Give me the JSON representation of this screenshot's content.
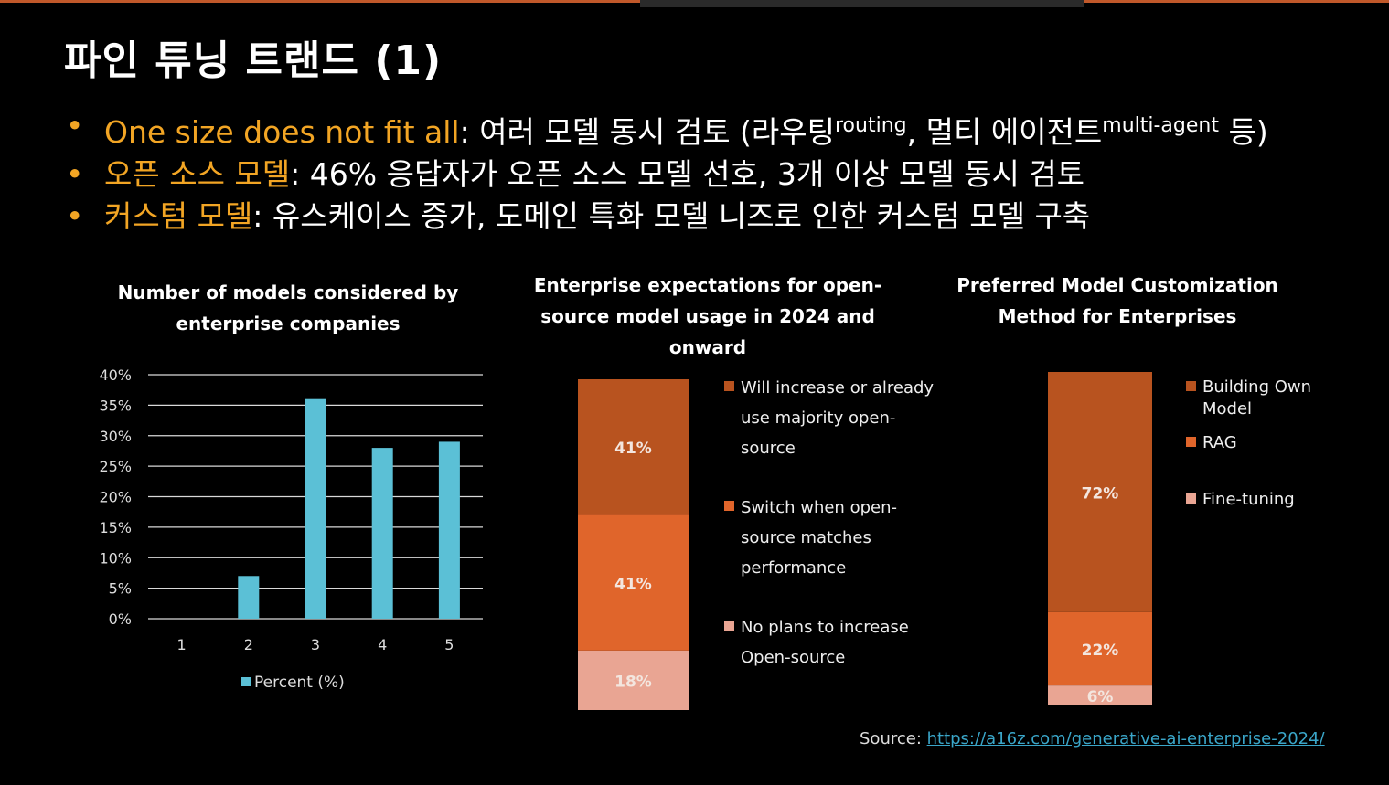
{
  "slide": {
    "title": "파인 튜닝 트랜드 (1)",
    "bullets": [
      {
        "highlight": "One size does not fit all",
        "text_pre": ": 여러 모델 동시 검토 (라우팅",
        "sup1": "routing",
        "text_mid": ", 멀티 에이전트",
        "sup2": "multi-agent",
        "text_post": " 등)"
      },
      {
        "highlight": "오픈 소스 모델",
        "text": ": 46% 응답자가 오픈 소스 모델 선호, 3개 이상 모델 동시 검토"
      },
      {
        "highlight": "커스텀 모델",
        "text": ": 유스케이스 증가, 도메인 특화 모델 니즈로 인한 커스텀 모델 구축"
      }
    ],
    "bullet_symbol": "•",
    "source_label": "Source: ",
    "source_link": "https://a16z.com/generative-ai-enterprise-2024/",
    "colors": {
      "accent": "#f2a524",
      "bar_blue": "#5bc0d6",
      "orange_dark": "#b8531f",
      "orange_mid": "#e0652b",
      "orange_light": "#e9a593",
      "link": "#3aa6c9"
    }
  },
  "chart_data": [
    {
      "type": "bar",
      "title_line1": "Number of models considered by",
      "title_line2": "enterprise companies",
      "categories": [
        "1",
        "2",
        "3",
        "4",
        "5"
      ],
      "series": [
        {
          "name": "Percent (%)",
          "values": [
            0,
            7,
            36,
            28,
            29
          ]
        }
      ],
      "ylim": [
        0,
        40
      ],
      "yticks": [
        "0%",
        "5%",
        "10%",
        "15%",
        "20%",
        "25%",
        "30%",
        "35%",
        "40%"
      ],
      "grid": true,
      "legend": "bottom"
    },
    {
      "type": "bar",
      "stacked": true,
      "title_line1": "Enterprise expectations for open-",
      "title_line2": "source model usage in 2024 and",
      "title_line3": "onward",
      "series": [
        {
          "name": "No plans to increase Open-source",
          "value": 18,
          "label": "18%",
          "color": "#e9a593"
        },
        {
          "name": "Switch when open-source matches performance",
          "value": 41,
          "label": "41%",
          "color": "#e0652b"
        },
        {
          "name": "Will increase or already use majority open-source",
          "value": 41,
          "label": "41%",
          "color": "#b8531f"
        }
      ],
      "legend_lines": [
        [
          "Will increase or already",
          "use majority open-",
          "source"
        ],
        [
          "Switch when open-",
          "source matches",
          "performance"
        ],
        [
          "No plans to increase",
          "Open-source"
        ]
      ],
      "legend": "right"
    },
    {
      "type": "bar",
      "stacked": true,
      "title_line1": "Preferred Model Customization",
      "title_line2": "Method for Enterprises",
      "series": [
        {
          "name": "Building Own Model",
          "value": 6,
          "label": "6%",
          "color": "#e9a593"
        },
        {
          "name": "RAG",
          "value": 22,
          "label": "22%",
          "color": "#e0652b"
        },
        {
          "name": "Fine-tuning",
          "value": 72,
          "label": "72%",
          "color": "#b8531f"
        }
      ],
      "legend_lines": [
        [
          "Building Own",
          "Model"
        ],
        [
          "RAG"
        ],
        [
          "Fine-tuning"
        ]
      ],
      "legend": "right"
    }
  ]
}
